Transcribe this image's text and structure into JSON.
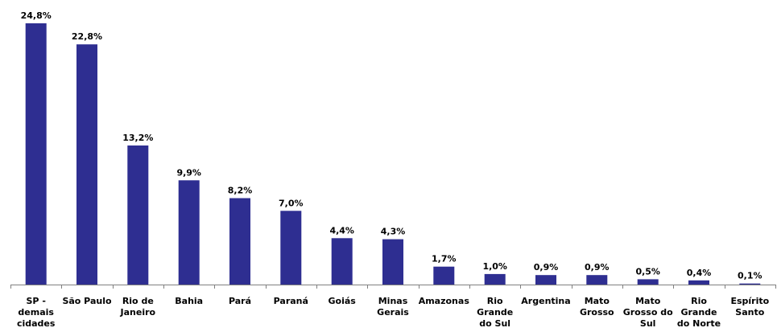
{
  "chart_data": {
    "type": "bar",
    "title": "",
    "xlabel": "",
    "ylabel": "",
    "ylim": [
      0,
      25
    ],
    "grid": false,
    "bar_color": "#2e2e91",
    "categories": [
      "SP - demais cidades",
      "São Paulo",
      "Rio de Janeiro",
      "Bahia",
      "Pará",
      "Paraná",
      "Goiás",
      "Minas Gerais",
      "Amazonas",
      "Rio Grande do Sul",
      "Argentina",
      "Mato Grosso",
      "Mato Grosso do Sul",
      "Rio Grande do Norte",
      "Espírito Santo"
    ],
    "tick_lines": [
      [
        "SP -",
        "demais",
        "cidades"
      ],
      [
        "São Paulo"
      ],
      [
        "Rio de",
        "Janeiro"
      ],
      [
        "Bahia"
      ],
      [
        "Pará"
      ],
      [
        "Paraná"
      ],
      [
        "Goiás"
      ],
      [
        "Minas",
        "Gerais"
      ],
      [
        "Amazonas"
      ],
      [
        "Rio",
        "Grande",
        "do Sul"
      ],
      [
        "Argentina"
      ],
      [
        "Mato",
        "Grosso"
      ],
      [
        "Mato",
        "Grosso do",
        "Sul"
      ],
      [
        "Rio",
        "Grande",
        "do Norte"
      ],
      [
        "Espírito",
        "Santo"
      ]
    ],
    "values": [
      24.8,
      22.8,
      13.2,
      9.9,
      8.2,
      7.0,
      4.4,
      4.3,
      1.7,
      1.0,
      0.9,
      0.9,
      0.5,
      0.4,
      0.1
    ],
    "data_labels": [
      "24,8%",
      "22,8%",
      "13,2%",
      "9,9%",
      "8,2%",
      "7,0%",
      "4,4%",
      "4,3%",
      "1,7%",
      "1,0%",
      "0,9%",
      "0,9%",
      "0,5%",
      "0,4%",
      "0,1%"
    ]
  }
}
